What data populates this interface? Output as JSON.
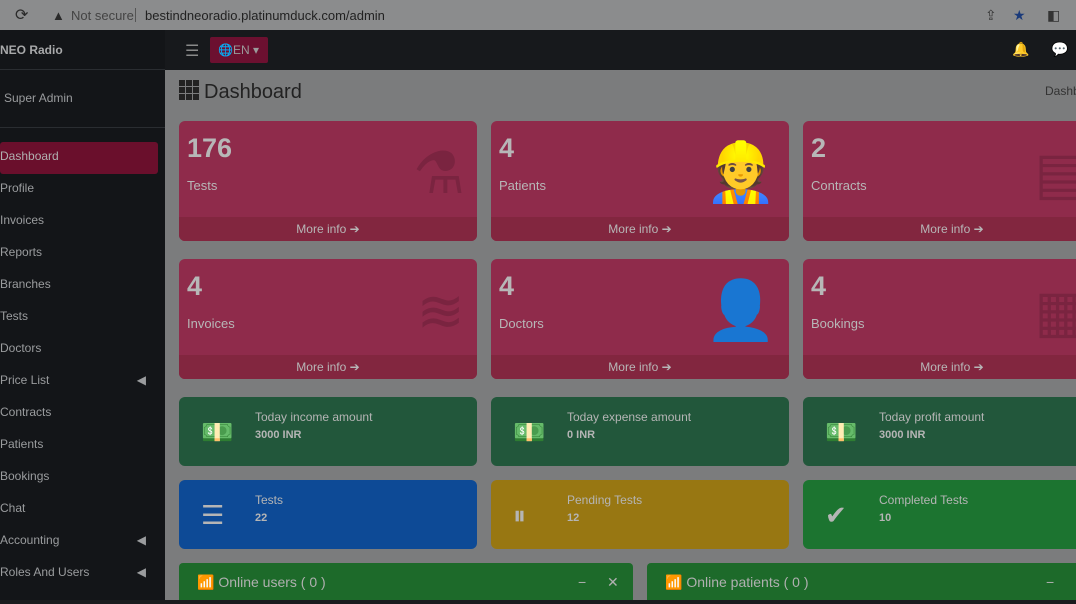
{
  "browser": {
    "security": "Not secure",
    "url": "bestindneoradio.platinumduck.com/admin"
  },
  "sidebar": {
    "brand": "NEO Radio",
    "user": "Super Admin",
    "items": [
      {
        "label": "Dashboard",
        "active": true
      },
      {
        "label": "Profile"
      },
      {
        "label": "Invoices"
      },
      {
        "label": "Reports"
      },
      {
        "label": "Branches"
      },
      {
        "label": "Tests"
      },
      {
        "label": "Doctors"
      },
      {
        "label": "Price List",
        "submenu": true
      },
      {
        "label": "Contracts"
      },
      {
        "label": "Patients"
      },
      {
        "label": "Bookings"
      },
      {
        "label": "Chat"
      },
      {
        "label": "Accounting",
        "submenu": true
      },
      {
        "label": "Roles And Users",
        "submenu": true
      }
    ]
  },
  "topbar": {
    "language": "EN"
  },
  "page": {
    "title": "Dashboard",
    "breadcrumb": "Dashb"
  },
  "cards": [
    {
      "value": "176",
      "label": "Tests",
      "more": "More info",
      "icon": "flask-icon"
    },
    {
      "value": "4",
      "label": "Patients",
      "more": "More info",
      "icon": "user-injured-icon"
    },
    {
      "value": "2",
      "label": "Contracts",
      "more": "More info",
      "icon": "file-medical-icon"
    },
    {
      "value": "4",
      "label": "Invoices",
      "more": "More info",
      "icon": "layers-icon"
    },
    {
      "value": "4",
      "label": "Doctors",
      "more": "More info",
      "icon": "user-md-icon"
    },
    {
      "value": "4",
      "label": "Bookings",
      "more": "More info",
      "icon": "calendar-icon"
    }
  ],
  "info": [
    {
      "title": "Today income amount",
      "value": "3000 INR",
      "icon": "money-icon",
      "color": "#22573b"
    },
    {
      "title": "Today expense amount",
      "value": "0 INR",
      "icon": "money-icon",
      "color": "#22573b"
    },
    {
      "title": "Today profit amount",
      "value": "3000 INR",
      "icon": "money-icon",
      "color": "#22573b"
    },
    {
      "title": "Tests",
      "value": "22",
      "icon": "list-icon",
      "color": "#0d4a96"
    },
    {
      "title": "Pending Tests",
      "value": "12",
      "icon": "pause-icon",
      "color": "#987712"
    },
    {
      "title": "Completed Tests",
      "value": "10",
      "icon": "check-icon",
      "color": "#1c7430"
    }
  ],
  "panels": [
    {
      "title": "Online users ( 0 )"
    },
    {
      "title": "Online patients ( 0 )"
    }
  ]
}
